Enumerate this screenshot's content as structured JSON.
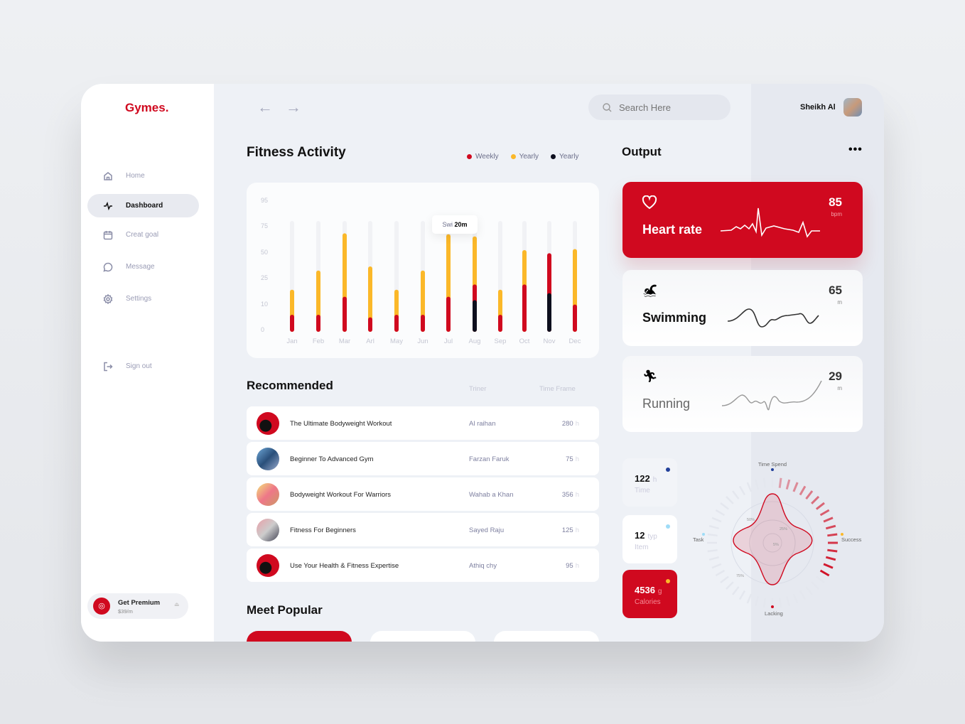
{
  "brand": "Gymes.",
  "sidebar": {
    "items": [
      {
        "label": "Home",
        "icon": "home-icon"
      },
      {
        "label": "Dashboard",
        "icon": "activity-icon",
        "active": true
      },
      {
        "label": "Creat goal",
        "icon": "calendar-icon"
      },
      {
        "label": "Message",
        "icon": "message-icon"
      },
      {
        "label": "Settings",
        "icon": "gear-icon"
      }
    ],
    "signout": "Sign out",
    "premium": {
      "title": "Get Premium",
      "price": "$39/m"
    }
  },
  "header": {
    "search_placeholder": "Search Here",
    "user": "Sheikh Al"
  },
  "activity": {
    "title": "Fitness Activity",
    "legend": [
      {
        "label": "Weekly",
        "color": "#d0091f"
      },
      {
        "label": "Yearly",
        "color": "#fbb829"
      },
      {
        "label": "Yearly",
        "color": "#0d0f1e"
      }
    ],
    "tooltip": {
      "label": "Swi",
      "value": "20m"
    }
  },
  "chart_data": {
    "type": "bar",
    "stacked": "overlay",
    "categories": [
      "Jan",
      "Feb",
      "Mar",
      "Arl",
      "May",
      "Jun",
      "Jul",
      "Aug",
      "Sep",
      "Oct",
      "Nov",
      "Dec"
    ],
    "yticks": [
      0,
      10,
      25,
      50,
      75,
      95
    ],
    "ylim": [
      0,
      95
    ],
    "grid": false,
    "series": [
      {
        "name": "Yearly",
        "color": "#fbb829",
        "values": [
          17,
          30,
          66,
          34,
          17,
          30,
          65,
          63,
          17,
          50,
          null,
          51
        ]
      },
      {
        "name": "Weekly",
        "color": "#d0091f",
        "values": [
          5,
          5,
          13,
          4,
          5,
          5,
          13,
          20,
          5,
          20,
          47,
          9
        ]
      },
      {
        "name": "Yearly",
        "color": "#0d0f1e",
        "values": [
          null,
          null,
          null,
          null,
          null,
          null,
          null,
          11,
          null,
          null,
          15,
          null
        ]
      }
    ]
  },
  "recommended": {
    "title": "Recommended",
    "col_trainer": "Triner",
    "col_time": "Time Frame",
    "unit": "h",
    "rows": [
      {
        "title": "The Ultimate Bodyweight Workout",
        "trainer": "Al raihan",
        "time": "280"
      },
      {
        "title": "Beginner To Advanced Gym",
        "trainer": "Farzan Faruk",
        "time": "75"
      },
      {
        "title": "Bodyweight Workout For Warriors",
        "trainer": "Wahab a Khan",
        "time": "356"
      },
      {
        "title": "Fitness For Beginners",
        "trainer": "Sayed Raju",
        "time": "125"
      },
      {
        "title": "Use Your Health & Fitness Expertise",
        "trainer": "Athiq chy",
        "time": "95"
      }
    ]
  },
  "popular": {
    "title": "Meet Popular"
  },
  "output": {
    "title": "Output",
    "cards": [
      {
        "name": "Heart rate",
        "value": "85",
        "unit": "bpm"
      },
      {
        "name": "Swimming",
        "value": "65",
        "unit": "m"
      },
      {
        "name": "Running",
        "value": "29",
        "unit": "m"
      }
    ]
  },
  "stats": [
    {
      "value": "122",
      "unit": "h",
      "label": "Time",
      "color": "#22409a"
    },
    {
      "value": "12",
      "unit": "typ",
      "label": "Item",
      "color": "#9fdcf7"
    },
    {
      "value": "4536",
      "unit": "g",
      "label": "Calories",
      "color": "#fbb829"
    }
  ],
  "radar": {
    "axes": [
      "Time Spend",
      "Success",
      "Lacking",
      "Task"
    ],
    "rings": [
      "5%",
      "25%",
      "50%",
      "75%"
    ]
  },
  "colors": {
    "accent": "#d0091f"
  }
}
